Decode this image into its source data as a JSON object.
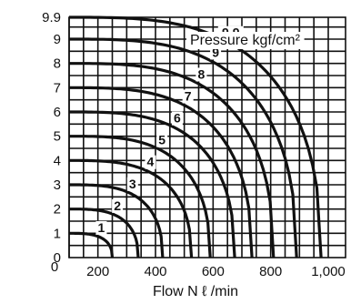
{
  "chart_data": {
    "type": "line",
    "xlabel": "Flow N ℓ /min",
    "ylabel": "",
    "legend_title": "Pressure kgf/cm²",
    "xlim": [
      100,
      1060
    ],
    "ylim": [
      0,
      9.9
    ],
    "x_tick_labels": [
      {
        "value": 200,
        "label": "200"
      },
      {
        "value": 400,
        "label": "400"
      },
      {
        "value": 600,
        "label": "600"
      },
      {
        "value": 800,
        "label": "800"
      },
      {
        "value": 1000,
        "label": "1,000"
      }
    ],
    "y_tick_labels": [
      {
        "value": 0,
        "label": "0"
      },
      {
        "value": 1,
        "label": "1"
      },
      {
        "value": 2,
        "label": "2"
      },
      {
        "value": 3,
        "label": "3"
      },
      {
        "value": 4,
        "label": "4"
      },
      {
        "value": 5,
        "label": "5"
      },
      {
        "value": 6,
        "label": "6"
      },
      {
        "value": 7,
        "label": "7"
      },
      {
        "value": 8,
        "label": "8"
      },
      {
        "value": 9,
        "label": "9"
      },
      {
        "value": 9.9,
        "label": "9.9"
      }
    ],
    "grid": true,
    "series": [
      {
        "name": "1",
        "supply_pressure": 1,
        "max_flow": 250
      },
      {
        "name": "2",
        "supply_pressure": 2,
        "max_flow": 340
      },
      {
        "name": "3",
        "supply_pressure": 3,
        "max_flow": 425
      },
      {
        "name": "4",
        "supply_pressure": 4,
        "max_flow": 525
      },
      {
        "name": "5",
        "supply_pressure": 5,
        "max_flow": 590
      },
      {
        "name": "6",
        "supply_pressure": 6,
        "max_flow": 675
      },
      {
        "name": "7",
        "supply_pressure": 7,
        "max_flow": 735
      },
      {
        "name": "8",
        "supply_pressure": 8,
        "max_flow": 810
      },
      {
        "name": "9",
        "supply_pressure": 9,
        "max_flow": 890
      },
      {
        "name": "9.9",
        "supply_pressure": 9.9,
        "max_flow": 975
      }
    ]
  }
}
